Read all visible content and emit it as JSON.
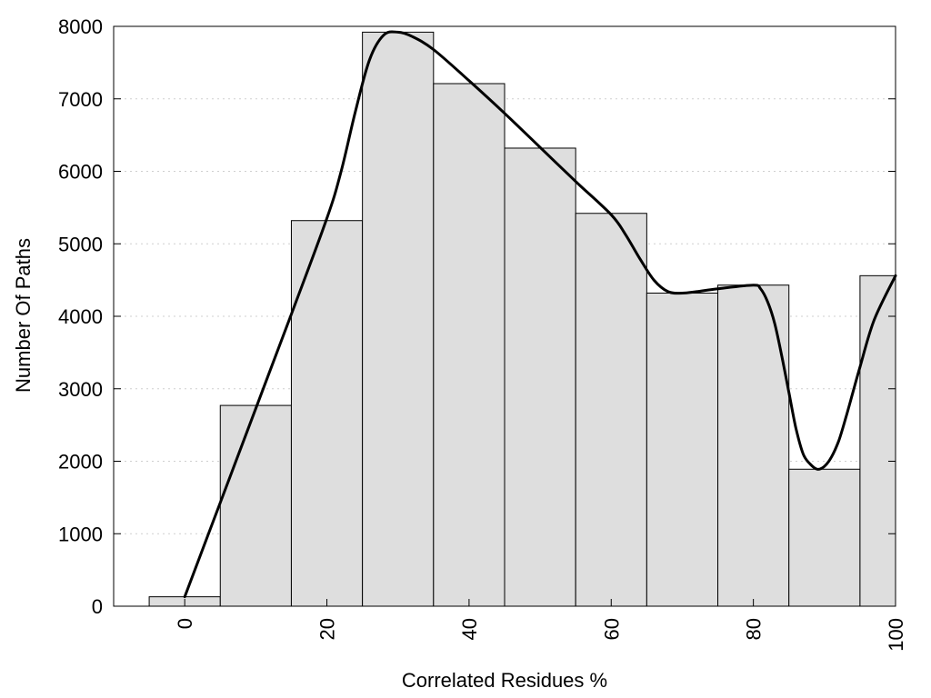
{
  "chart_data": {
    "type": "bar",
    "xlabel": "Correlated Residues %",
    "ylabel": "Number Of Paths",
    "xlim": [
      -10,
      100
    ],
    "ylim": [
      0,
      8000
    ],
    "bin_width": 10,
    "x_ticks": [
      0,
      20,
      40,
      60,
      80,
      100
    ],
    "y_ticks": [
      0,
      1000,
      2000,
      3000,
      4000,
      5000,
      6000,
      7000,
      8000
    ],
    "grid": "horizontal dotted",
    "bars": [
      {
        "center": 0,
        "value": 130
      },
      {
        "center": 10,
        "value": 2770
      },
      {
        "center": 20,
        "value": 5320
      },
      {
        "center": 30,
        "value": 7920
      },
      {
        "center": 40,
        "value": 7210
      },
      {
        "center": 50,
        "value": 6320
      },
      {
        "center": 60,
        "value": 5420
      },
      {
        "center": 70,
        "value": 4320
      },
      {
        "center": 80,
        "value": 4430
      },
      {
        "center": 90,
        "value": 1890
      },
      {
        "center": 100,
        "value": 4560
      }
    ],
    "series": [
      {
        "type": "line",
        "x": [
          0,
          5,
          10,
          15,
          20,
          22,
          24,
          26,
          28,
          30,
          32,
          35,
          40,
          45,
          50,
          55,
          60,
          62,
          64,
          66,
          68,
          70,
          72,
          75,
          80,
          81,
          82,
          83,
          84,
          85,
          86,
          87,
          88,
          89,
          90,
          91,
          92,
          93,
          94,
          95,
          97,
          100
        ],
        "y": [
          130,
          1430,
          2730,
          4030,
          5350,
          6000,
          6820,
          7540,
          7880,
          7920,
          7860,
          7680,
          7250,
          6800,
          6330,
          5860,
          5400,
          5130,
          4800,
          4500,
          4340,
          4320,
          4340,
          4380,
          4430,
          4380,
          4200,
          3900,
          3450,
          2950,
          2450,
          2100,
          1960,
          1890,
          1930,
          2060,
          2280,
          2600,
          2950,
          3300,
          3950,
          4560
        ]
      }
    ]
  }
}
